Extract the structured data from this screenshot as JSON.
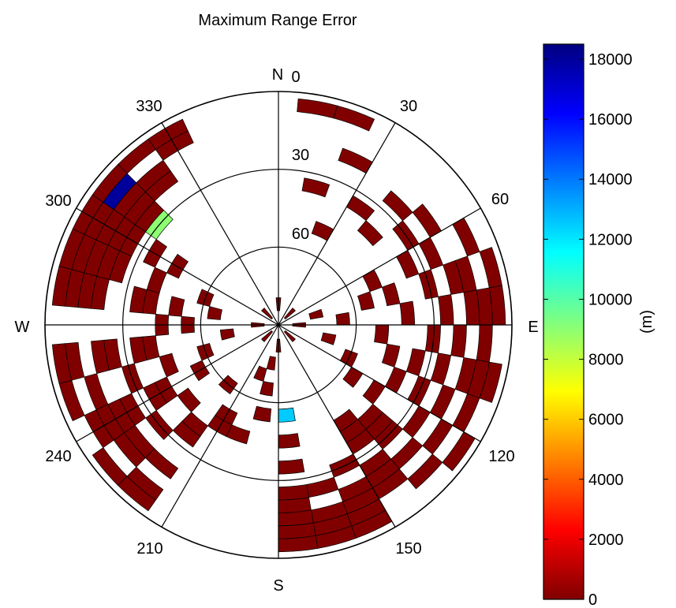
{
  "chart_data": {
    "type": "polar-heatmap",
    "title": "Maximum Range Error",
    "theta_convention": "azimuth degrees clockwise from North",
    "radial_axis": "elevation angle (deg); 90 at center, 0 at rim",
    "compass_labels": {
      "north": "N",
      "east": "E",
      "south": "S",
      "west": "W"
    },
    "azimuth_tick_labels": [
      "0",
      "30",
      "60",
      "120",
      "150",
      "210",
      "240",
      "300",
      "330"
    ],
    "elevation_tick_labels": [
      "30",
      "60"
    ],
    "colorbar": {
      "label": "(m)",
      "ticks": [
        "0",
        "2000",
        "4000",
        "6000",
        "8000",
        "10000",
        "12000",
        "14000",
        "16000",
        "18000"
      ],
      "min": 0,
      "max": 18500,
      "colormap": "jet"
    },
    "bins": {
      "azimuth_step_deg": 10,
      "elevation_step_deg": 5,
      "cells": [
        {
          "az": 330,
          "el": 5,
          "value": 0
        },
        {
          "az": 330,
          "el": 10,
          "value": 0
        },
        {
          "az": 320,
          "el": 5,
          "value": 0
        },
        {
          "az": 310,
          "el": 5,
          "value": 0
        },
        {
          "az": 300,
          "el": 5,
          "value": 0
        },
        {
          "az": 300,
          "el": 10,
          "value": 0
        },
        {
          "az": 310,
          "el": 15,
          "value": 0
        },
        {
          "az": 320,
          "el": 15,
          "value": 0
        },
        {
          "az": 320,
          "el": 20,
          "value": 0
        },
        {
          "az": 310,
          "el": 20,
          "value": 0
        },
        {
          "az": 300,
          "el": 15,
          "value": 0
        },
        {
          "az": 300,
          "el": 20,
          "value": 0
        },
        {
          "az": 310,
          "el": 25,
          "value": 0
        },
        {
          "az": 300,
          "el": 25,
          "value": 0
        },
        {
          "az": 300,
          "el": 35,
          "value": 0
        },
        {
          "az": 310,
          "el": 10,
          "value": 18000
        },
        {
          "az": 310,
          "el": 30,
          "value": 9000
        },
        {
          "az": 290,
          "el": 5,
          "value": 0
        },
        {
          "az": 290,
          "el": 10,
          "value": 0
        },
        {
          "az": 290,
          "el": 15,
          "value": 0
        },
        {
          "az": 290,
          "el": 20,
          "value": 0
        },
        {
          "az": 290,
          "el": 25,
          "value": 0
        },
        {
          "az": 280,
          "el": 5,
          "value": 0
        },
        {
          "az": 280,
          "el": 10,
          "value": 0
        },
        {
          "az": 280,
          "el": 15,
          "value": 0
        },
        {
          "az": 280,
          "el": 20,
          "value": 0
        },
        {
          "az": 280,
          "el": 35,
          "value": 0
        },
        {
          "az": 280,
          "el": 40,
          "value": 0
        },
        {
          "az": 280,
          "el": 50,
          "value": 0
        },
        {
          "az": 290,
          "el": 40,
          "value": 0
        },
        {
          "az": 300,
          "el": 45,
          "value": 0
        },
        {
          "az": 290,
          "el": 60,
          "value": 0
        },
        {
          "az": 280,
          "el": 65,
          "value": 0
        },
        {
          "az": 270,
          "el": 55,
          "value": 0
        },
        {
          "az": 270,
          "el": 45,
          "value": 0
        },
        {
          "az": 260,
          "el": 5,
          "value": 0
        },
        {
          "az": 260,
          "el": 10,
          "value": 0
        },
        {
          "az": 260,
          "el": 20,
          "value": 0
        },
        {
          "az": 260,
          "el": 25,
          "value": 0
        },
        {
          "az": 260,
          "el": 35,
          "value": 0
        },
        {
          "az": 260,
          "el": 40,
          "value": 0
        },
        {
          "az": 260,
          "el": 70,
          "value": 0
        },
        {
          "az": 250,
          "el": 5,
          "value": 0
        },
        {
          "az": 250,
          "el": 15,
          "value": 0
        },
        {
          "az": 250,
          "el": 30,
          "value": 0
        },
        {
          "az": 250,
          "el": 45,
          "value": 0
        },
        {
          "az": 250,
          "el": 60,
          "value": 0
        },
        {
          "az": 240,
          "el": 10,
          "value": 0
        },
        {
          "az": 240,
          "el": 15,
          "value": 0
        },
        {
          "az": 240,
          "el": 20,
          "value": 0
        },
        {
          "az": 240,
          "el": 25,
          "value": 0
        },
        {
          "az": 240,
          "el": 35,
          "value": 0
        },
        {
          "az": 240,
          "el": 40,
          "value": 0
        },
        {
          "az": 240,
          "el": 55,
          "value": 0
        },
        {
          "az": 230,
          "el": 5,
          "value": 0
        },
        {
          "az": 230,
          "el": 15,
          "value": 0
        },
        {
          "az": 230,
          "el": 20,
          "value": 0
        },
        {
          "az": 230,
          "el": 30,
          "value": 0
        },
        {
          "az": 230,
          "el": 45,
          "value": 0
        },
        {
          "az": 220,
          "el": 5,
          "value": 0
        },
        {
          "az": 220,
          "el": 10,
          "value": 0
        },
        {
          "az": 220,
          "el": 20,
          "value": 0
        },
        {
          "az": 220,
          "el": 35,
          "value": 0
        },
        {
          "az": 220,
          "el": 40,
          "value": 0
        },
        {
          "az": 220,
          "el": 60,
          "value": 0
        },
        {
          "az": 210,
          "el": 45,
          "value": 0
        },
        {
          "az": 210,
          "el": 50,
          "value": 0
        },
        {
          "az": 200,
          "el": 45,
          "value": 0
        },
        {
          "az": 190,
          "el": 55,
          "value": 0
        },
        {
          "az": 190,
          "el": 65,
          "value": 0
        },
        {
          "az": 190,
          "el": 75,
          "value": 0
        },
        {
          "az": 200,
          "el": 70,
          "value": 0
        },
        {
          "az": 175,
          "el": 55,
          "value": 12500
        },
        {
          "az": 175,
          "el": 45,
          "value": 0
        },
        {
          "az": 175,
          "el": 35,
          "value": 0
        },
        {
          "az": 175,
          "el": 25,
          "value": 0
        },
        {
          "az": 175,
          "el": 20,
          "value": 0
        },
        {
          "az": 175,
          "el": 15,
          "value": 0
        },
        {
          "az": 175,
          "el": 10,
          "value": 0
        },
        {
          "az": 175,
          "el": 5,
          "value": 0
        },
        {
          "az": 165,
          "el": 5,
          "value": 0
        },
        {
          "az": 165,
          "el": 10,
          "value": 0
        },
        {
          "az": 165,
          "el": 15,
          "value": 0
        },
        {
          "az": 165,
          "el": 25,
          "value": 0
        },
        {
          "az": 155,
          "el": 5,
          "value": 0
        },
        {
          "az": 155,
          "el": 10,
          "value": 0
        },
        {
          "az": 155,
          "el": 15,
          "value": 0
        },
        {
          "az": 155,
          "el": 20,
          "value": 0
        },
        {
          "az": 155,
          "el": 30,
          "value": 0
        },
        {
          "az": 145,
          "el": 15,
          "value": 0
        },
        {
          "az": 145,
          "el": 20,
          "value": 0
        },
        {
          "az": 145,
          "el": 25,
          "value": 0
        },
        {
          "az": 145,
          "el": 35,
          "value": 0
        },
        {
          "az": 145,
          "el": 40,
          "value": 0
        },
        {
          "az": 145,
          "el": 45,
          "value": 0
        },
        {
          "az": 135,
          "el": 10,
          "value": 0
        },
        {
          "az": 135,
          "el": 20,
          "value": 0
        },
        {
          "az": 135,
          "el": 30,
          "value": 0
        },
        {
          "az": 135,
          "el": 35,
          "value": 0
        },
        {
          "az": 135,
          "el": 40,
          "value": 0
        },
        {
          "az": 125,
          "el": 5,
          "value": 0
        },
        {
          "az": 125,
          "el": 15,
          "value": 0
        },
        {
          "az": 125,
          "el": 25,
          "value": 0
        },
        {
          "az": 125,
          "el": 45,
          "value": 0
        },
        {
          "az": 125,
          "el": 55,
          "value": 0
        },
        {
          "az": 115,
          "el": 10,
          "value": 0
        },
        {
          "az": 115,
          "el": 20,
          "value": 0
        },
        {
          "az": 115,
          "el": 30,
          "value": 0
        },
        {
          "az": 115,
          "el": 40,
          "value": 0
        },
        {
          "az": 115,
          "el": 60,
          "value": 0
        },
        {
          "az": 105,
          "el": 5,
          "value": 0
        },
        {
          "az": 105,
          "el": 10,
          "value": 0
        },
        {
          "az": 105,
          "el": 15,
          "value": 0
        },
        {
          "az": 105,
          "el": 25,
          "value": 0
        },
        {
          "az": 105,
          "el": 35,
          "value": 0
        },
        {
          "az": 105,
          "el": 45,
          "value": 0
        },
        {
          "az": 105,
          "el": 70,
          "value": 0
        },
        {
          "az": 95,
          "el": 10,
          "value": 0
        },
        {
          "az": 95,
          "el": 20,
          "value": 0
        },
        {
          "az": 95,
          "el": 30,
          "value": 0
        },
        {
          "az": 95,
          "el": 50,
          "value": 0
        },
        {
          "az": 85,
          "el": 5,
          "value": 0
        },
        {
          "az": 85,
          "el": 10,
          "value": 0
        },
        {
          "az": 85,
          "el": 15,
          "value": 0
        },
        {
          "az": 85,
          "el": 25,
          "value": 0
        },
        {
          "az": 85,
          "el": 40,
          "value": 0
        },
        {
          "az": 85,
          "el": 65,
          "value": 0
        },
        {
          "az": 75,
          "el": 5,
          "value": 0
        },
        {
          "az": 75,
          "el": 15,
          "value": 0
        },
        {
          "az": 75,
          "el": 20,
          "value": 0
        },
        {
          "az": 75,
          "el": 30,
          "value": 0
        },
        {
          "az": 75,
          "el": 45,
          "value": 0
        },
        {
          "az": 75,
          "el": 55,
          "value": 0
        },
        {
          "az": 75,
          "el": 75,
          "value": 0
        },
        {
          "az": 65,
          "el": 10,
          "value": 0
        },
        {
          "az": 65,
          "el": 25,
          "value": 0
        },
        {
          "az": 65,
          "el": 35,
          "value": 0
        },
        {
          "az": 65,
          "el": 50,
          "value": 0
        },
        {
          "az": 55,
          "el": 20,
          "value": 0
        },
        {
          "az": 55,
          "el": 30,
          "value": 0
        },
        {
          "az": 45,
          "el": 25,
          "value": 0
        },
        {
          "az": 45,
          "el": 40,
          "value": 0
        },
        {
          "az": 35,
          "el": 35,
          "value": 0
        },
        {
          "az": 25,
          "el": 20,
          "value": 0
        },
        {
          "az": 20,
          "el": 5,
          "value": 0
        },
        {
          "az": 10,
          "el": 5,
          "value": 0
        },
        {
          "az": 15,
          "el": 35,
          "value": 0
        },
        {
          "az": 25,
          "el": 50,
          "value": 0
        },
        {
          "az": 0,
          "el": 82,
          "value": 0
        },
        {
          "az": 90,
          "el": 82,
          "value": 0
        },
        {
          "az": 180,
          "el": 82,
          "value": 0
        },
        {
          "az": 270,
          "el": 82,
          "value": 0
        },
        {
          "az": 45,
          "el": 84,
          "value": 0
        },
        {
          "az": 135,
          "el": 84,
          "value": 0
        },
        {
          "az": 225,
          "el": 84,
          "value": 0
        },
        {
          "az": 315,
          "el": 84,
          "value": 0
        }
      ]
    }
  }
}
